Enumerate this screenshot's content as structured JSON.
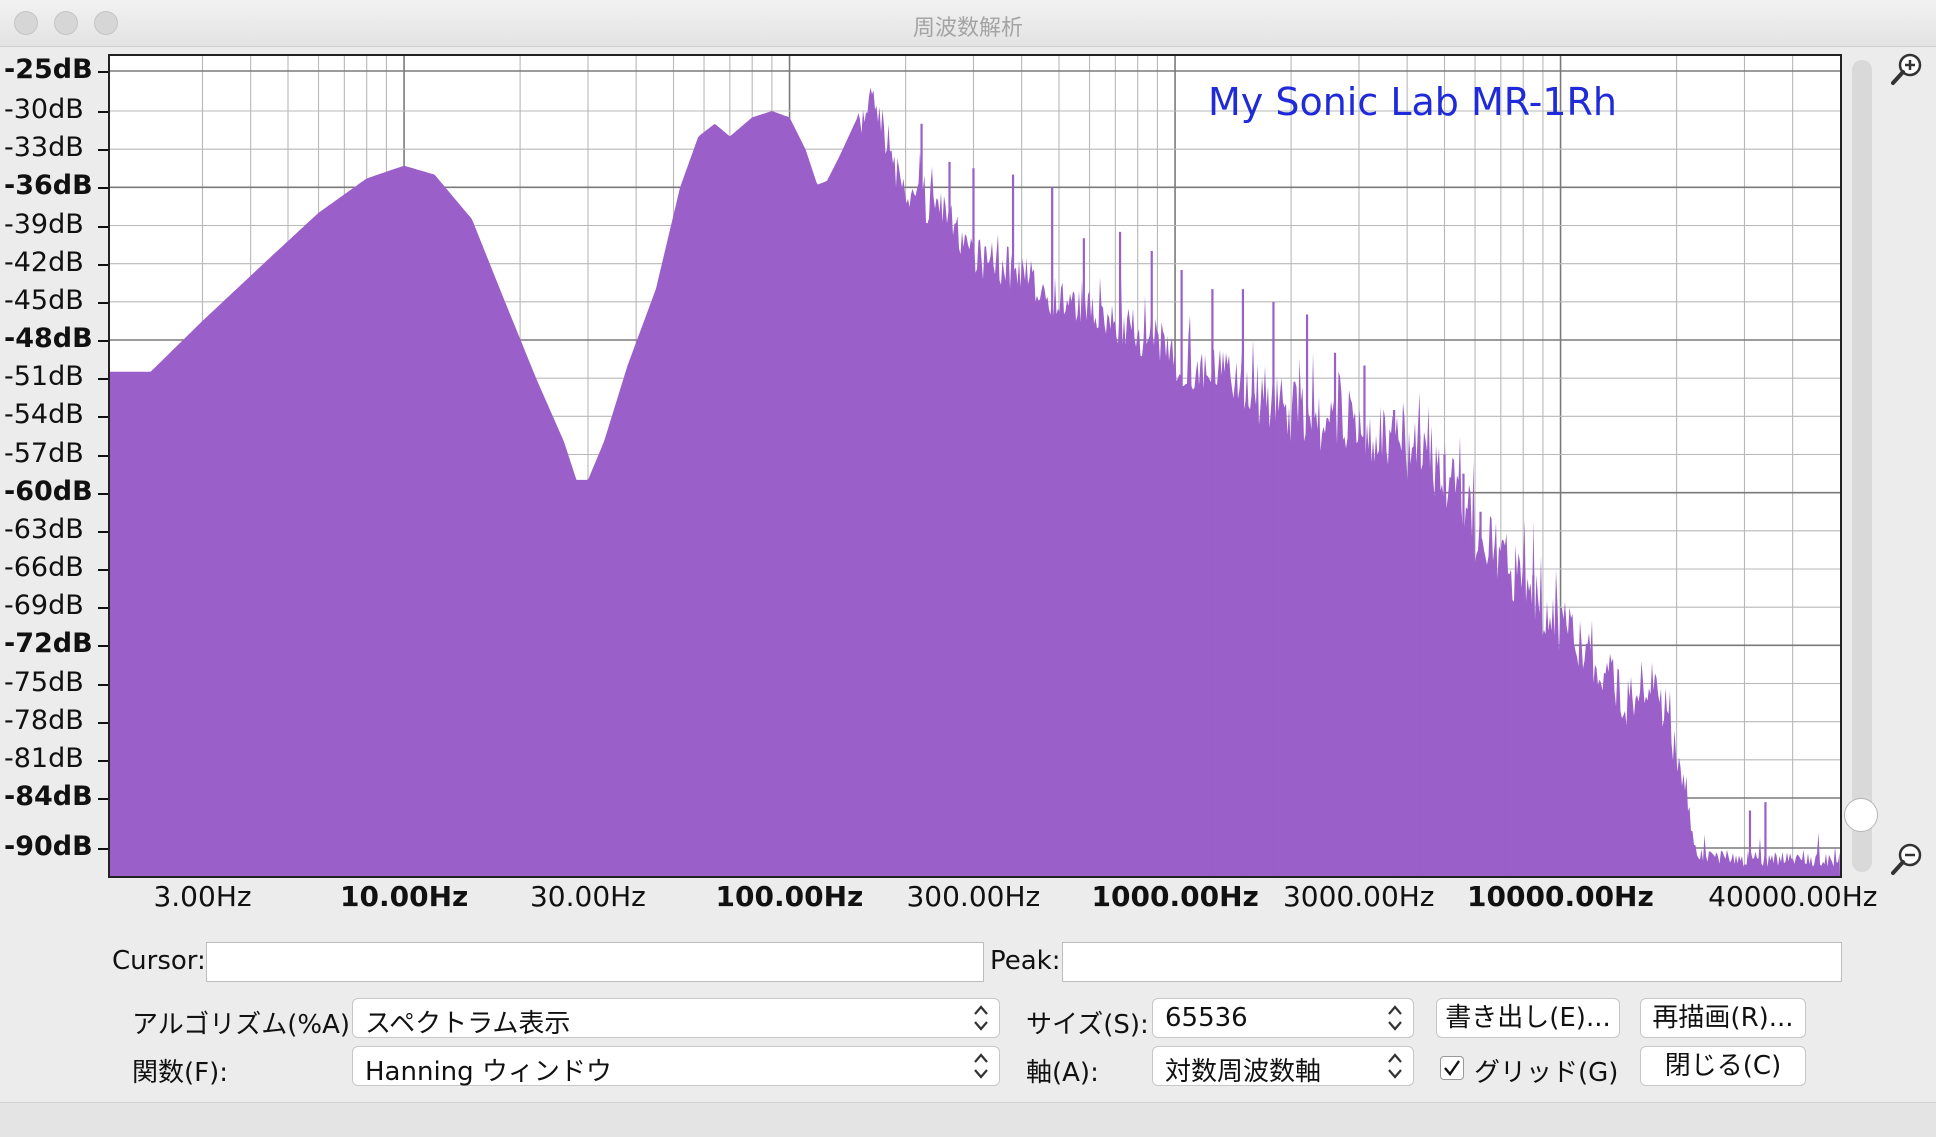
{
  "window": {
    "title": "周波数解析"
  },
  "plot": {
    "watermark": "My Sonic Lab MR-1Rh",
    "fill_color": "#9a5fc8",
    "y_axis": {
      "labels": [
        {
          "text": "-25dB",
          "value": -25,
          "bold": true
        },
        {
          "text": "-30dB",
          "value": -30,
          "bold": false
        },
        {
          "text": "-33dB",
          "value": -33,
          "bold": false
        },
        {
          "text": "-36dB",
          "value": -36,
          "bold": true
        },
        {
          "text": "-39dB",
          "value": -39,
          "bold": false
        },
        {
          "text": "-42dB",
          "value": -42,
          "bold": false
        },
        {
          "text": "-45dB",
          "value": -45,
          "bold": false
        },
        {
          "text": "-48dB",
          "value": -48,
          "bold": true
        },
        {
          "text": "-51dB",
          "value": -51,
          "bold": false
        },
        {
          "text": "-54dB",
          "value": -54,
          "bold": false
        },
        {
          "text": "-57dB",
          "value": -57,
          "bold": false
        },
        {
          "text": "-60dB",
          "value": -60,
          "bold": true
        },
        {
          "text": "-63dB",
          "value": -63,
          "bold": false
        },
        {
          "text": "-66dB",
          "value": -66,
          "bold": false
        },
        {
          "text": "-69dB",
          "value": -69,
          "bold": false
        },
        {
          "text": "-72dB",
          "value": -72,
          "bold": true
        },
        {
          "text": "-75dB",
          "value": -75,
          "bold": false
        },
        {
          "text": "-78dB",
          "value": -78,
          "bold": false
        },
        {
          "text": "-81dB",
          "value": -81,
          "bold": false
        },
        {
          "text": "-84dB",
          "value": -84,
          "bold": true
        },
        {
          "text": "-90dB",
          "value": -90,
          "bold": true
        }
      ]
    },
    "x_axis": {
      "scale": "log",
      "labels": [
        {
          "text": "3.00Hz",
          "value": 3,
          "bold": false
        },
        {
          "text": "10.00Hz",
          "value": 10,
          "bold": true
        },
        {
          "text": "30.00Hz",
          "value": 30,
          "bold": false
        },
        {
          "text": "100.00Hz",
          "value": 100,
          "bold": true
        },
        {
          "text": "300.00Hz",
          "value": 300,
          "bold": false
        },
        {
          "text": "1000.00Hz",
          "value": 1000,
          "bold": true
        },
        {
          "text": "3000.00Hz",
          "value": 3000,
          "bold": false
        },
        {
          "text": "10000.00Hz",
          "value": 10000,
          "bold": true
        },
        {
          "text": "40000.00Hz",
          "value": 40000,
          "bold": false
        }
      ]
    },
    "envelope": [
      [
        2.2,
        -50.5
      ],
      [
        3,
        -46.5
      ],
      [
        4.5,
        -41.5
      ],
      [
        6,
        -38
      ],
      [
        8,
        -35.3
      ],
      [
        10,
        -34.3
      ],
      [
        12,
        -35
      ],
      [
        15,
        -38.5
      ],
      [
        18,
        -44.5
      ],
      [
        22,
        -51
      ],
      [
        26,
        -56
      ],
      [
        28,
        -59
      ],
      [
        30,
        -59
      ],
      [
        33,
        -56
      ],
      [
        38,
        -50
      ],
      [
        45,
        -44
      ],
      [
        52,
        -36
      ],
      [
        58,
        -32
      ],
      [
        64,
        -31
      ],
      [
        70,
        -32
      ],
      [
        80,
        -30.5
      ],
      [
        90,
        -30
      ],
      [
        100,
        -30.5
      ],
      [
        110,
        -33
      ],
      [
        118,
        -35.8
      ],
      [
        125,
        -35.5
      ],
      [
        135,
        -33.5
      ],
      [
        150,
        -30.5
      ],
      [
        160,
        -27
      ],
      [
        165,
        -26
      ],
      [
        175,
        -29.5
      ],
      [
        190,
        -33
      ],
      [
        200,
        -35
      ],
      [
        240,
        -36
      ],
      [
        280,
        -38
      ],
      [
        320,
        -40
      ],
      [
        400,
        -41
      ],
      [
        500,
        -43
      ],
      [
        700,
        -45
      ],
      [
        1000,
        -47
      ],
      [
        1500,
        -49
      ],
      [
        2000,
        -51
      ],
      [
        3000,
        -52.5
      ],
      [
        4000,
        -54
      ],
      [
        5000,
        -56
      ],
      [
        6000,
        -60.5
      ],
      [
        7500,
        -63.5
      ],
      [
        9000,
        -66.5
      ],
      [
        11000,
        -69.5
      ],
      [
        13000,
        -72.5
      ],
      [
        15000,
        -74.5
      ],
      [
        17000,
        -73
      ],
      [
        19000,
        -75.5
      ],
      [
        21000,
        -81
      ],
      [
        23000,
        -90
      ],
      [
        30000,
        -91
      ]
    ],
    "spikes": [
      [
        220,
        -31
      ],
      [
        260,
        -34
      ],
      [
        300,
        -34.5
      ],
      [
        380,
        -35
      ],
      [
        480,
        -36
      ],
      [
        580,
        -40
      ],
      [
        720,
        -39.5
      ],
      [
        870,
        -41
      ],
      [
        1040,
        -42.5
      ],
      [
        1250,
        -44
      ],
      [
        1500,
        -44
      ],
      [
        1800,
        -45
      ],
      [
        2200,
        -46
      ],
      [
        2600,
        -49
      ],
      [
        3100,
        -50
      ],
      [
        3700,
        -53.5
      ],
      [
        4300,
        -55.5
      ],
      [
        5000,
        -57
      ],
      [
        5600,
        -58.5
      ],
      [
        6200,
        -61.5
      ],
      [
        7200,
        -64.5
      ],
      [
        8500,
        -66.5
      ],
      [
        31000,
        -85.5
      ],
      [
        34000,
        -84.5
      ]
    ]
  },
  "cursor": {
    "label": "Cursor:",
    "value": ""
  },
  "peak": {
    "label": "Peak:",
    "value": ""
  },
  "controls": {
    "algorithm": {
      "label": "アルゴリズム(%A):",
      "value": "スペクトラム表示"
    },
    "function": {
      "label": "関数(F):",
      "value": "Hanning ウィンドウ"
    },
    "size": {
      "label": "サイズ(S):",
      "value": "65536"
    },
    "axis": {
      "label": "軸(A):",
      "value": "対数周波数軸"
    },
    "export_button": "書き出し(E)...",
    "replot_button": "再描画(R)...",
    "grid_checkbox": {
      "label": "グリッド(G)",
      "checked": true
    },
    "close_button": "閉じる(C)"
  }
}
